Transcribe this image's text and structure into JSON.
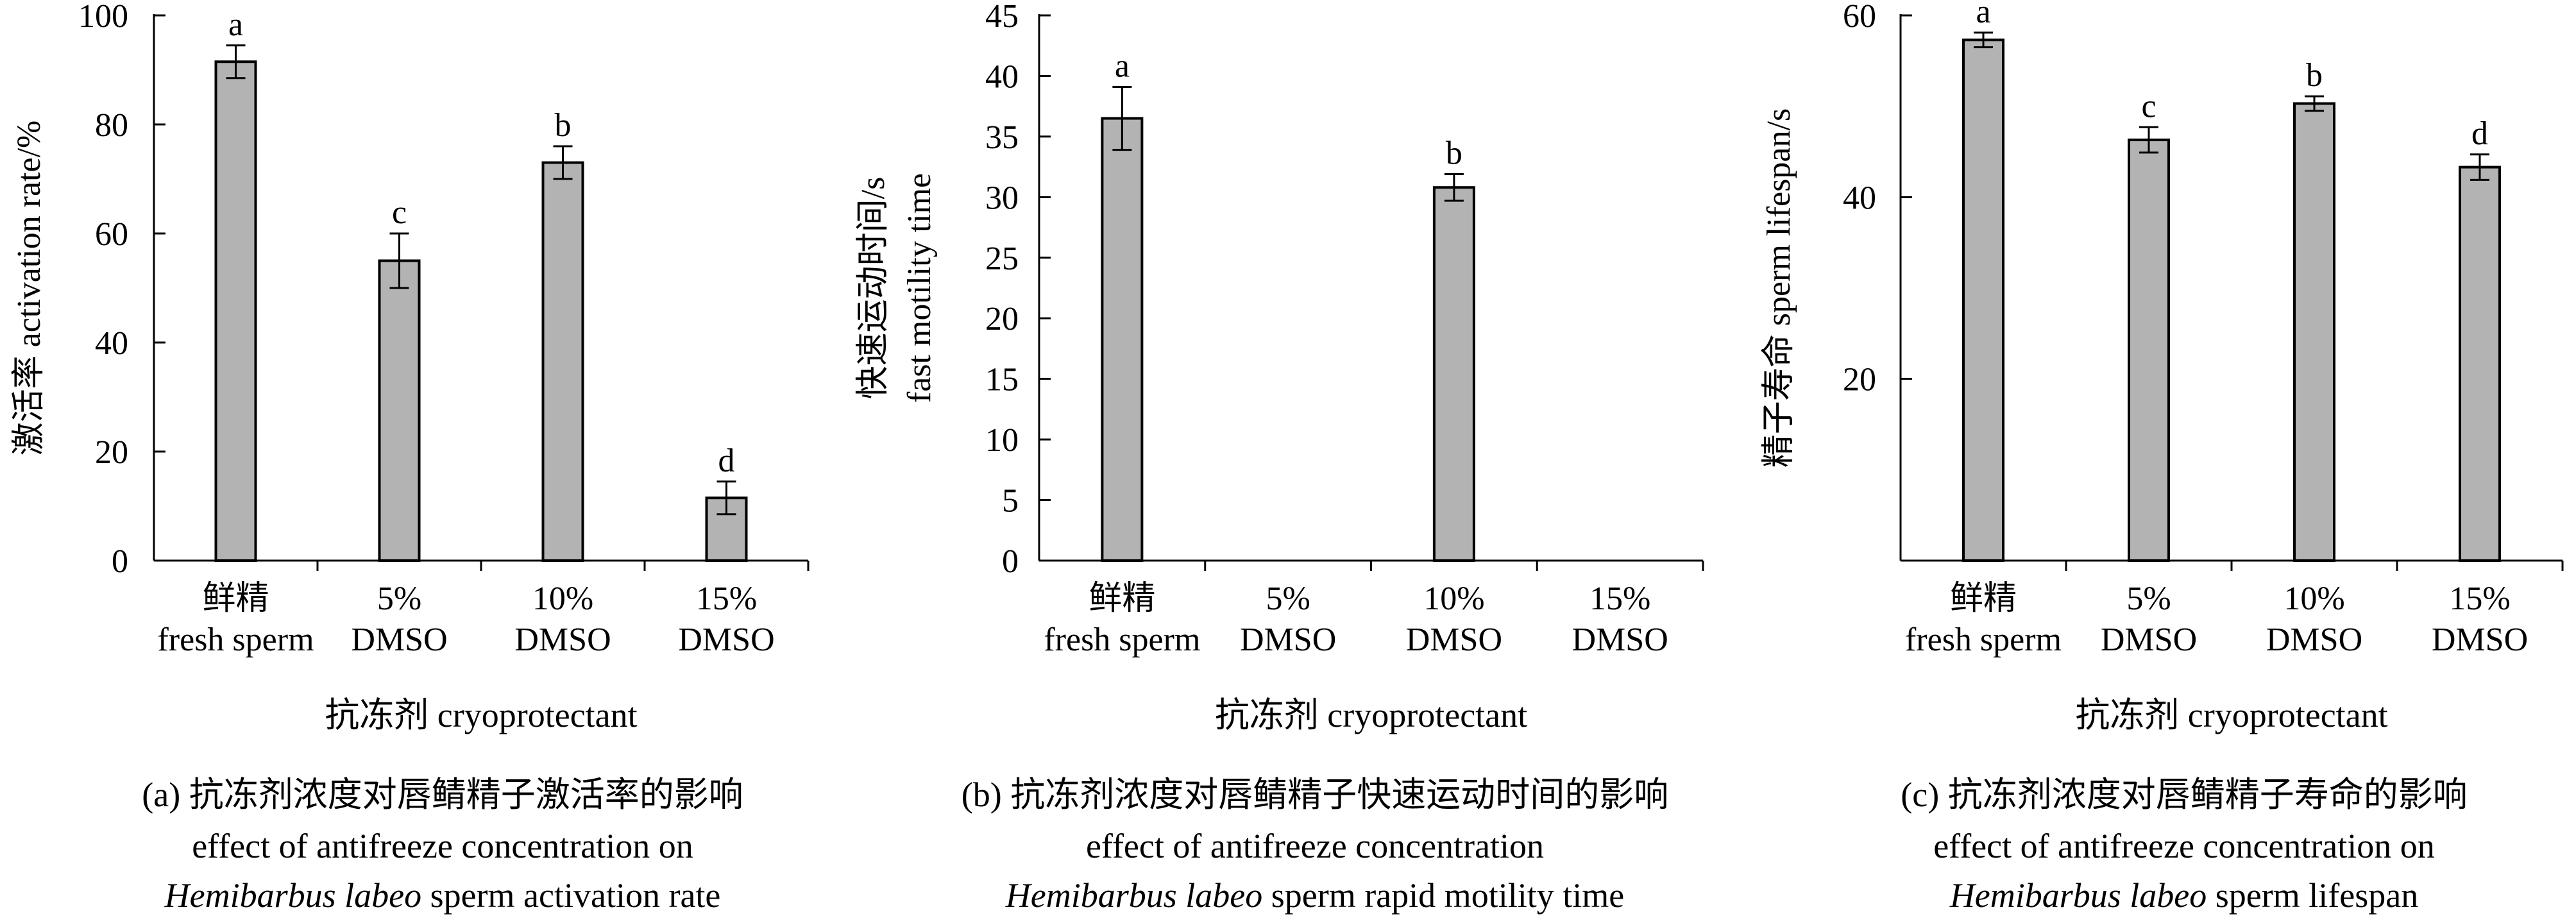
{
  "chart_data": [
    {
      "panel": "a",
      "type": "bar",
      "categories": [
        {
          "line1": "鲜精",
          "line2": "fresh sperm"
        },
        {
          "line1": "5%",
          "line2": "DMSO"
        },
        {
          "line1": "10%",
          "line2": "DMSO"
        },
        {
          "line1": "15%",
          "line2": "DMSO"
        }
      ],
      "values": [
        91.5,
        55,
        73,
        11.5
      ],
      "errors": [
        3,
        5,
        3,
        3
      ],
      "letters": [
        "a",
        "c",
        "b",
        "d"
      ],
      "ylim": [
        0,
        100
      ],
      "yticks": [
        0,
        20,
        40,
        60,
        80,
        100
      ],
      "ylabel": "激活率 activation rate/%",
      "xlabel": "抗冻剂 cryoprotectant",
      "caption": [
        {
          "text": "(a) 抗冻剂浓度对唇鲭精子激活率的影响",
          "italic": false
        },
        {
          "text": "effect of antifreeze concentration on",
          "italic": false
        },
        {
          "parts": [
            {
              "text": "Hemibarbus labeo",
              "italic": true
            },
            {
              "text": " sperm activation rate",
              "italic": false
            }
          ]
        }
      ],
      "bar_color": "#b3b3b3",
      "grid": false
    },
    {
      "panel": "b",
      "type": "bar",
      "categories": [
        {
          "line1": "鲜精",
          "line2": "fresh sperm"
        },
        {
          "line1": "5%",
          "line2": "DMSO"
        },
        {
          "line1": "10%",
          "line2": "DMSO"
        },
        {
          "line1": "15%",
          "line2": "DMSO"
        }
      ],
      "values": [
        36.5,
        null,
        30.8,
        null
      ],
      "errors": [
        2.6,
        null,
        1.1,
        null
      ],
      "letters": [
        "a",
        "",
        "b",
        ""
      ],
      "ylim": [
        0,
        45
      ],
      "yticks": [
        0,
        5,
        10,
        15,
        20,
        25,
        30,
        35,
        40,
        45
      ],
      "ylabel": [
        "快速运动时间/s",
        "fast motility time"
      ],
      "xlabel": "抗冻剂 cryoprotectant",
      "caption": [
        {
          "text": "(b) 抗冻剂浓度对唇鲭精子快速运动时间的影响",
          "italic": false
        },
        {
          "text": "effect of antifreeze concentration",
          "italic": false
        },
        {
          "parts": [
            {
              "text": "Hemibarbus labeo",
              "italic": true
            },
            {
              "text": " sperm rapid motility time",
              "italic": false
            }
          ]
        }
      ],
      "bar_color": "#b3b3b3",
      "grid": false
    },
    {
      "panel": "c",
      "type": "bar",
      "categories": [
        {
          "line1": "鲜精",
          "line2": "fresh sperm"
        },
        {
          "line1": "5%",
          "line2": "DMSO"
        },
        {
          "line1": "10%",
          "line2": "DMSO"
        },
        {
          "line1": "15%",
          "line2": "DMSO"
        }
      ],
      "values": [
        57.3,
        46.3,
        50.3,
        43.3
      ],
      "errors": [
        0.8,
        1.4,
        0.8,
        1.4
      ],
      "letters": [
        "a",
        "c",
        "b",
        "d"
      ],
      "ylim": [
        0,
        60
      ],
      "yticks": [
        20,
        40,
        60
      ],
      "ylabel": "精子寿命 sperm lifespan/s",
      "xlabel": "抗冻剂 cryoprotectant",
      "caption": [
        {
          "text": "(c) 抗冻剂浓度对唇鲭精子寿命的影响",
          "italic": false
        },
        {
          "text": "effect of antifreeze concentration on",
          "italic": false
        },
        {
          "parts": [
            {
              "text": "Hemibarbus labeo",
              "italic": true
            },
            {
              "text": " sperm lifespan",
              "italic": false
            }
          ]
        }
      ],
      "bar_color": "#b3b3b3",
      "grid": false
    }
  ]
}
